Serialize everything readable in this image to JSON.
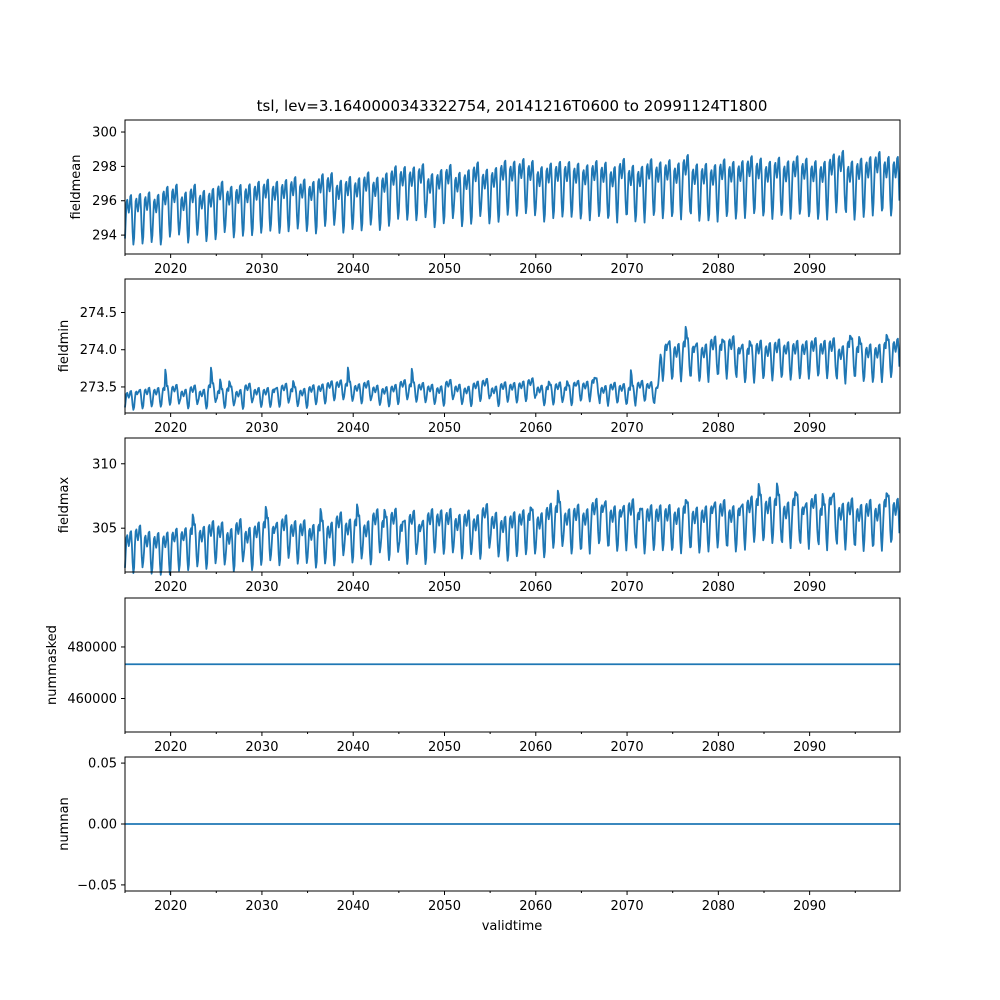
{
  "chart_data": {
    "type": "line",
    "title": "tsl, lev=3.1640000343322754, 20141216T0600 to 20991124T1800",
    "xlabel": "validtime",
    "xlim": [
      2015.0,
      2099.9
    ],
    "xticks": [
      2020,
      2030,
      2040,
      2050,
      2060,
      2070,
      2080,
      2090
    ],
    "xtick_labels": [
      "2020",
      "2030",
      "2040",
      "2050",
      "2060",
      "2070",
      "2080",
      "2090"
    ],
    "minor_xticks": [
      2015,
      2025,
      2035,
      2045,
      2055,
      2065,
      2075,
      2085,
      2095
    ],
    "line_color": "#1f77b4",
    "panels": [
      {
        "name": "fieldmean",
        "ylabel": "fieldmean",
        "ylim": [
          292.9,
          300.7
        ],
        "yticks": [
          294,
          296,
          298,
          300
        ],
        "ytick_labels": [
          "294",
          "296",
          "298",
          "300"
        ],
        "series_kind": "seasonal",
        "seasonal": {
          "base": [
            [
              2015,
              295.4
            ],
            [
              2030,
              296.0
            ],
            [
              2045,
              296.6
            ],
            [
              2060,
              297.0
            ],
            [
              2075,
              297.1
            ],
            [
              2099.9,
              297.4
            ]
          ],
          "amplitude": [
            [
              2015,
              1.6
            ],
            [
              2099.9,
              1.9
            ]
          ],
          "jitter": 0.55,
          "seed": 11,
          "spikes": 0
        }
      },
      {
        "name": "fieldmin",
        "ylabel": "fieldmin",
        "ylim": [
          273.15,
          274.95
        ],
        "yticks": [
          273.5,
          274.0,
          274.5
        ],
        "ytick_labels": [
          "273.5",
          "274.0",
          "274.5"
        ],
        "series_kind": "seasonal",
        "seasonal": {
          "base": [
            [
              2015,
              273.38
            ],
            [
              2040,
              273.45
            ],
            [
              2073.3,
              273.47
            ],
            [
              2073.8,
              273.95
            ],
            [
              2099.9,
              273.9
            ]
          ],
          "amplitude": [
            [
              2015,
              0.14
            ],
            [
              2073.3,
              0.15
            ],
            [
              2073.8,
              0.28
            ],
            [
              2099.9,
              0.28
            ]
          ],
          "jitter": 0.1,
          "seed": 23,
          "spikes": 0.45
        }
      },
      {
        "name": "fieldmax",
        "ylabel": "fieldmax",
        "ylim": [
          301.6,
          312.0
        ],
        "yticks": [
          305,
          310
        ],
        "ytick_labels": [
          "305",
          "310"
        ],
        "series_kind": "seasonal",
        "seasonal": {
          "base": [
            [
              2015,
              303.8
            ],
            [
              2040,
              304.6
            ],
            [
              2070,
              305.6
            ],
            [
              2099.9,
              306.0
            ]
          ],
          "amplitude": [
            [
              2015,
              1.8
            ],
            [
              2099.9,
              2.0
            ]
          ],
          "jitter": 0.9,
          "seed": 37,
          "spikes": 3.0
        }
      },
      {
        "name": "nummasked",
        "ylabel": "nummasked",
        "ylim": [
          447000,
          499000
        ],
        "yticks": [
          460000,
          480000
        ],
        "ytick_labels": [
          "460000",
          "480000"
        ],
        "series_kind": "constant",
        "constant": 473300
      },
      {
        "name": "numnan",
        "ylabel": "numnan",
        "ylim": [
          -0.055,
          0.055
        ],
        "yticks": [
          -0.05,
          0.0,
          0.05
        ],
        "ytick_labels": [
          "−0.05",
          "0.00",
          "0.05"
        ],
        "series_kind": "constant",
        "constant": 0.0
      }
    ]
  }
}
